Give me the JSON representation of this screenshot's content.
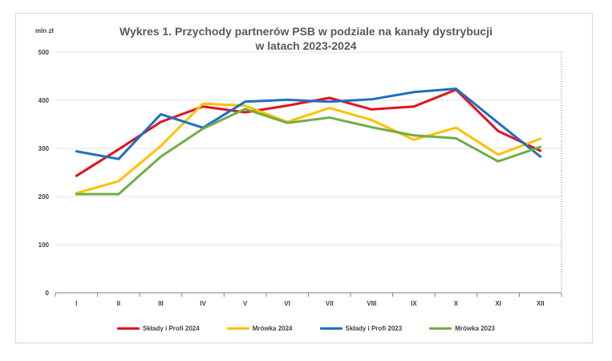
{
  "chart_data": {
    "type": "line",
    "title_line1": "Wykres 1. Przychody partnerów PSB w podziale na kanały dystrybucji",
    "title_line2": "w latach 2023-2024",
    "ylabel": "mln zł",
    "categories": [
      "I",
      "II",
      "III",
      "IV",
      "V",
      "VI",
      "VII",
      "VIII",
      "IX",
      "X",
      "XI",
      "XII"
    ],
    "ylim": [
      0,
      500
    ],
    "yticks": [
      0,
      100,
      200,
      300,
      400,
      500
    ],
    "grid": "horizontal",
    "legend_position": "bottom",
    "series": [
      {
        "name": "Składy i Profi 2024",
        "color": "#e0141e",
        "values": [
          243,
          298,
          355,
          387,
          375,
          389,
          405,
          381,
          387,
          422,
          336,
          295
        ]
      },
      {
        "name": "Mrówka 2024",
        "color": "#ffc000",
        "values": [
          207,
          232,
          305,
          393,
          389,
          355,
          384,
          359,
          318,
          343,
          287,
          320
        ]
      },
      {
        "name": "Składy i Profi 2023",
        "color": "#1f6fc0",
        "values": [
          294,
          278,
          371,
          343,
          397,
          401,
          397,
          402,
          417,
          424,
          353,
          283
        ]
      },
      {
        "name": "Mrówka 2023",
        "color": "#70ad47",
        "values": [
          205,
          205,
          283,
          341,
          382,
          353,
          364,
          344,
          327,
          321,
          273,
          303
        ]
      }
    ]
  }
}
